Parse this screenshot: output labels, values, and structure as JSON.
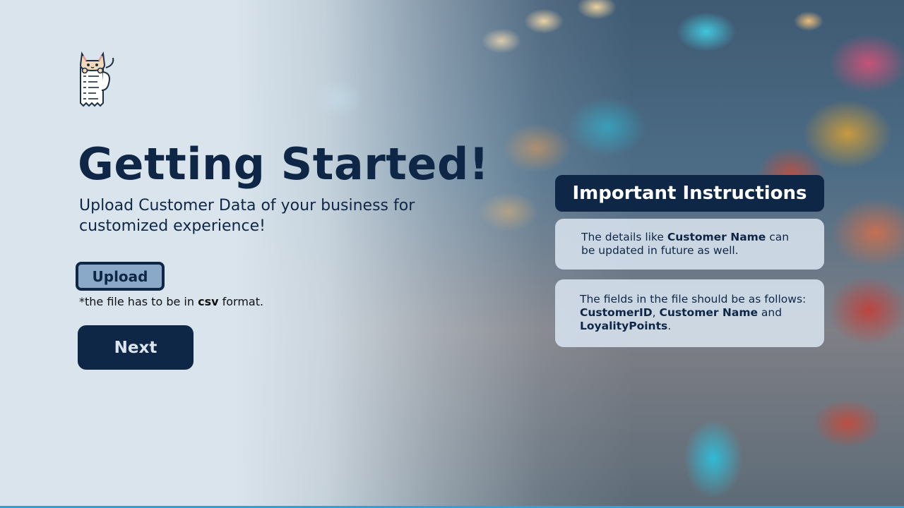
{
  "page": {
    "title": "Getting Started!",
    "subtitle": "Upload Customer Data of your business for customized experience!"
  },
  "upload": {
    "button_label": "Upload",
    "note_prefix": "*the file has to be in ",
    "note_format": "csv",
    "note_suffix": " format."
  },
  "next": {
    "label": "Next"
  },
  "instructions": {
    "header": "Important Instructions",
    "card1": {
      "prefix": "The details like ",
      "bold": "Customer Name",
      "suffix": " can be updated in future as well."
    },
    "card2": {
      "text": "The fields in the file should be as follows: ",
      "field1": "CustomerID",
      "sep1": ", ",
      "field2": "Customer Name",
      "sep2": " and ",
      "field3": "LoyalityPoints",
      "end": "."
    }
  },
  "icons": {
    "logo": "cat-receipt-logo-icon"
  },
  "colors": {
    "navy": "#0f2747",
    "upload_fill": "#8aa8c7",
    "card_bg": "#d2dee9"
  }
}
